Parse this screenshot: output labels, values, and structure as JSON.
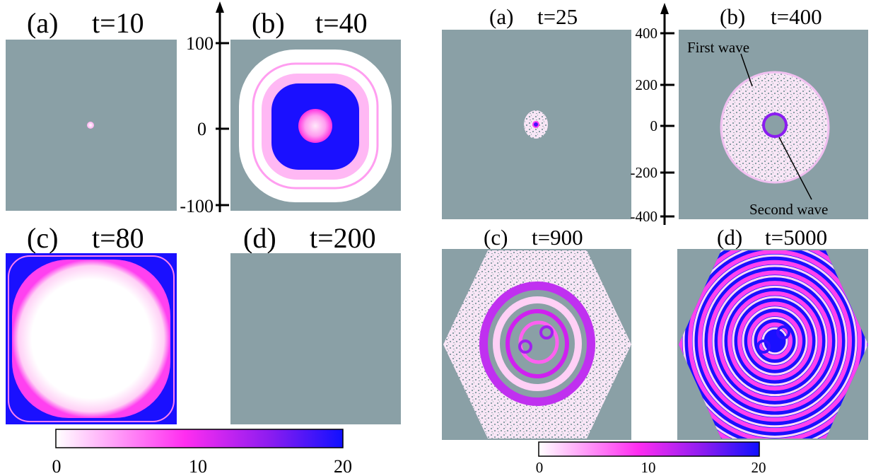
{
  "left_figure": {
    "panels": [
      {
        "label": "(a)",
        "title": "t=10"
      },
      {
        "label": "(b)",
        "title": "t=40"
      },
      {
        "label": "(c)",
        "title": "t=80"
      },
      {
        "label": "(d)",
        "title": "t=200"
      }
    ],
    "y_axis_ticks": [
      100,
      0,
      -100
    ],
    "colorbar_ticks": [
      0,
      10,
      20
    ]
  },
  "right_figure": {
    "panels": [
      {
        "label": "(a)",
        "title": "t=25"
      },
      {
        "label": "(b)",
        "title": "t=400"
      },
      {
        "label": "(c)",
        "title": "t=900"
      },
      {
        "label": "(d)",
        "title": "t=5000"
      }
    ],
    "y_axis_ticks": [
      400,
      200,
      0,
      -200,
      -400
    ],
    "annotations": [
      "First wave",
      "Second wave"
    ],
    "colorbar_ticks": [
      0,
      10,
      20
    ]
  }
}
